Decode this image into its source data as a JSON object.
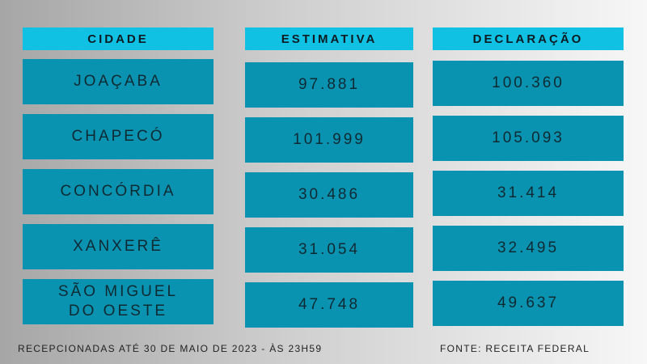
{
  "chart_data": {
    "type": "table",
    "columns": [
      "CIDADE",
      "ESTIMATIVA",
      "DECLARAÇÃO"
    ],
    "rows": [
      [
        "JOAÇABA",
        "97.881",
        "100.360"
      ],
      [
        "CHAPECÓ",
        "101.999",
        "105.093"
      ],
      [
        "CONCÓRDIA",
        "30.486",
        "31.414"
      ],
      [
        "XANXERÊ",
        "31.054",
        "32.495"
      ],
      [
        "SÃO MIGUEL\nDO OESTE",
        "47.748",
        "49.637"
      ]
    ]
  },
  "footer": {
    "note": "RECEPCIONADAS ATÉ 30 DE MAIO DE 2023 - ÀS 23H59",
    "source": "FONTE: RECEITA FEDERAL"
  },
  "colors": {
    "header": "#10c1e4",
    "cell": "#0a93b0"
  }
}
